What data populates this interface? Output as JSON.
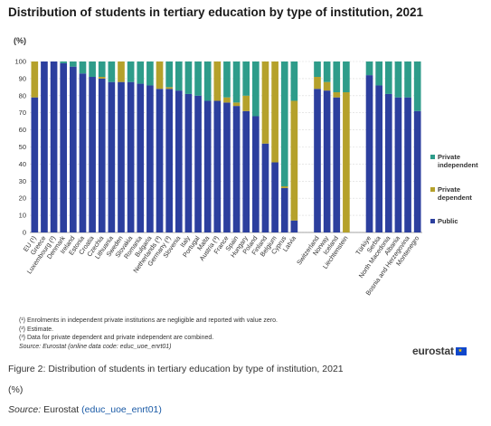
{
  "chart_data": {
    "type": "bar",
    "stacked": true,
    "title": "Distribution of students in tertiary education by type of institution, 2021",
    "unit_label": "(%)",
    "ylim": [
      0,
      100
    ],
    "yticks": [
      "0",
      "10",
      "20",
      "30",
      "40",
      "50",
      "60",
      "70",
      "80",
      "90",
      "100"
    ],
    "grid": true,
    "legend_position": "right",
    "categories": [
      "EU (¹)",
      "Greece",
      "Luxembourg (²)",
      "Denmark",
      "Ireland",
      "Estonia",
      "Croatia",
      "Czechia",
      "Lithuania",
      "Sweden",
      "Slovakia",
      "Romania",
      "Bulgaria",
      "Netherlands (³)",
      "Germany (³)",
      "Slovenia",
      "Italy",
      "Portugal",
      "Malta",
      "Austria (³)",
      "France",
      "Spain",
      "Hungary",
      "Poland",
      "Finland",
      "Belgium",
      "Cyprus",
      "Latvia",
      "Switzerland",
      "Norway",
      "Iceland",
      "Liechtenstein",
      "Türkiye",
      "Serbia",
      "North Macedonia",
      "Albania",
      "Bosnia and Herzegovina",
      "Montenegro"
    ],
    "groups": [
      28,
      4,
      6
    ],
    "series": [
      {
        "name": "Public",
        "color": "#2c3f9e",
        "values": [
          79,
          100,
          100,
          99,
          97,
          93,
          91,
          90,
          88,
          88,
          88,
          87,
          86,
          84,
          84,
          83,
          81,
          80,
          77,
          77,
          76,
          74,
          71,
          68,
          52,
          41,
          26,
          7,
          84,
          83,
          79,
          0,
          92,
          86,
          81,
          79,
          79,
          71
        ]
      },
      {
        "name": "Private dependent",
        "color": "#b5a12b",
        "values": [
          21,
          0,
          0,
          0,
          0,
          0,
          0,
          1,
          0,
          12,
          0,
          0,
          0,
          16,
          1,
          0,
          0,
          0,
          0,
          23,
          3,
          2,
          9,
          0,
          48,
          59,
          1,
          70,
          7,
          5,
          3,
          82,
          0,
          0,
          0,
          0,
          0,
          0
        ]
      },
      {
        "name": "Private independent",
        "color": "#2e9c8a",
        "values": [
          0,
          0,
          0,
          1,
          3,
          7,
          9,
          9,
          12,
          0,
          12,
          13,
          14,
          0,
          15,
          17,
          19,
          20,
          23,
          0,
          21,
          24,
          20,
          32,
          0,
          0,
          73,
          23,
          9,
          12,
          18,
          18,
          8,
          14,
          19,
          21,
          21,
          29
        ]
      }
    ],
    "legend": [
      "Private independent",
      "Private dependent",
      "Public"
    ]
  },
  "footnotes": [
    "(¹) Enrolments in independent private institutions are negligible and reported with value zero.",
    "(²) Estimate.",
    "(³) Data for private dependent and private independent are combined."
  ],
  "source_note": "Source: Eurostat (online data code: educ_uoe_enrt01)",
  "logo_text": "eurostat",
  "caption": {
    "figure": "Figure 2: Distribution of students in tertiary education by type of institution, 2021",
    "unit": "(%)",
    "source_label": "Source:",
    "source_text": "Eurostat",
    "source_link": "(educ_uoe_enrt01)"
  }
}
